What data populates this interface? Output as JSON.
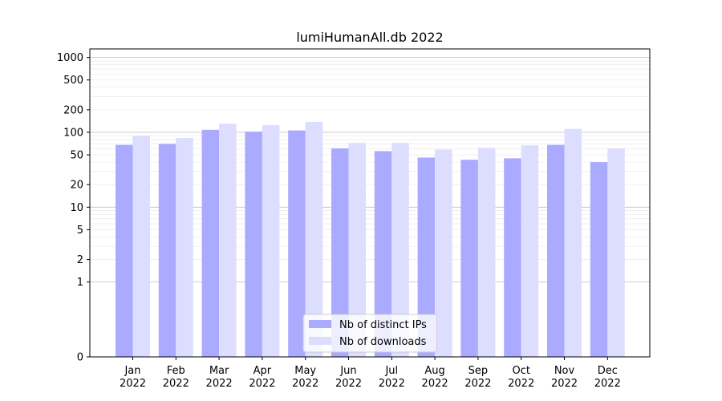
{
  "chart_data": {
    "type": "bar",
    "title": "lumiHumanAll.db 2022",
    "xlabel": "",
    "ylabel": "",
    "y_scale": "symlog",
    "ylim": [
      0,
      1300
    ],
    "y_ticks": [
      0,
      1,
      2,
      5,
      10,
      20,
      50,
      100,
      200,
      500,
      1000
    ],
    "y_tick_labels": [
      "0",
      "1",
      "2",
      "5",
      "10",
      "20",
      "50",
      "100",
      "200",
      "500",
      "1000"
    ],
    "categories": [
      "Jan\n2022",
      "Feb\n2022",
      "Mar\n2022",
      "Apr\n2022",
      "May\n2022",
      "Jun\n2022",
      "Jul\n2022",
      "Aug\n2022",
      "Sep\n2022",
      "Oct\n2022",
      "Nov\n2022",
      "Dec\n2022"
    ],
    "category_lines": [
      [
        "Jan",
        "2022"
      ],
      [
        "Feb",
        "2022"
      ],
      [
        "Mar",
        "2022"
      ],
      [
        "Apr",
        "2022"
      ],
      [
        "May",
        "2022"
      ],
      [
        "Jun",
        "2022"
      ],
      [
        "Jul",
        "2022"
      ],
      [
        "Aug",
        "2022"
      ],
      [
        "Sep",
        "2022"
      ],
      [
        "Oct",
        "2022"
      ],
      [
        "Nov",
        "2022"
      ],
      [
        "Dec",
        "2022"
      ]
    ],
    "series": [
      {
        "name": "Nb of distinct IPs",
        "color": "#aaaaff",
        "values": [
          68,
          70,
          108,
          102,
          106,
          61,
          56,
          46,
          43,
          45,
          68,
          40
        ]
      },
      {
        "name": "Nb of downloads",
        "color": "#ddddff",
        "values": [
          90,
          84,
          130,
          125,
          138,
          72,
          72,
          59,
          62,
          67,
          111,
          61
        ]
      }
    ],
    "grid": true,
    "legend_position": "bottom-center"
  }
}
